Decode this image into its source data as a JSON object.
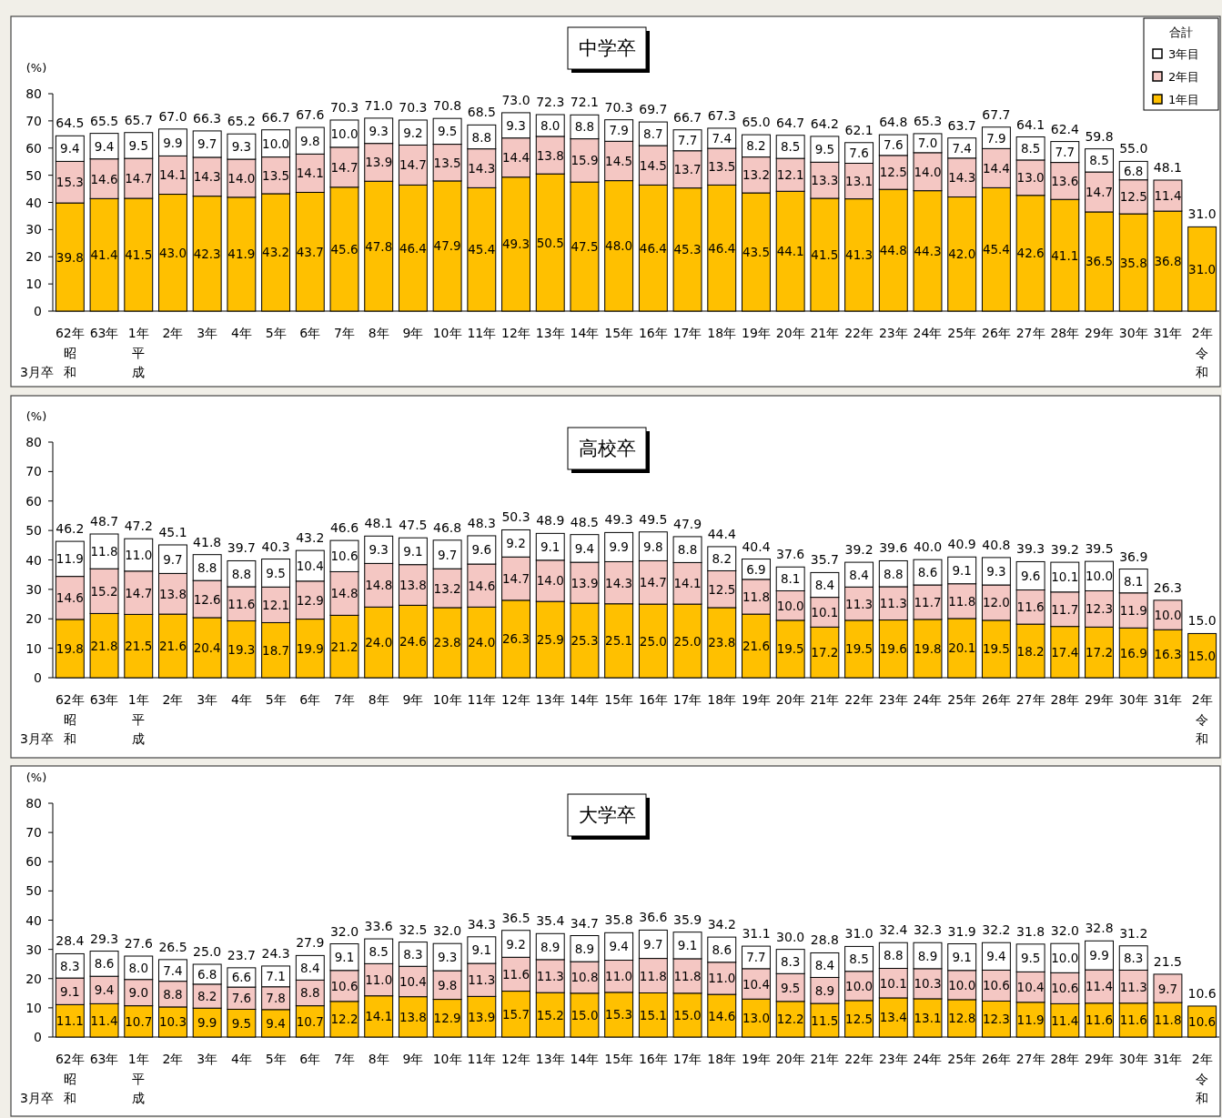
{
  "chart_data": [
    {
      "type": "bar",
      "stacked": true,
      "title": "中学卒",
      "ylabel": "(%)",
      "legend": "top right",
      "legend_title": "合計",
      "categories": [
        "62年",
        "63年",
        "1年",
        "2年",
        "3年",
        "4年",
        "5年",
        "6年",
        "7年",
        "8年",
        "9年",
        "10年",
        "11年",
        "12年",
        "13年",
        "14年",
        "15年",
        "16年",
        "17年",
        "18年",
        "19年",
        "20年",
        "21年",
        "22年",
        "23年",
        "24年",
        "25年",
        "26年",
        "27年",
        "28年",
        "29年",
        "30年",
        "31年",
        "2年"
      ],
      "ylim": [
        0,
        80
      ],
      "yticks": [
        0,
        10,
        20,
        30,
        40,
        50,
        60,
        70,
        80
      ],
      "series": [
        {
          "name": "1年目",
          "color": "#ffc000",
          "values": [
            39.8,
            41.4,
            41.5,
            43.0,
            42.3,
            41.9,
            43.2,
            43.7,
            45.6,
            47.8,
            46.4,
            47.9,
            45.4,
            49.3,
            50.5,
            47.5,
            48.0,
            46.4,
            45.3,
            46.4,
            43.5,
            44.1,
            41.5,
            41.3,
            44.8,
            44.3,
            42.0,
            45.4,
            42.6,
            41.1,
            36.5,
            35.8,
            36.8,
            31.0
          ],
          "value_labels": [
            "39.8",
            "41.4",
            "41.5",
            "43.0",
            "42.3",
            "41.9",
            "43.2",
            "43.7",
            "45.6",
            "47.8",
            "46.4",
            "47.9",
            "45.4",
            "49.3",
            "50.5",
            "47.5",
            "48.0",
            "46.4",
            "45.3",
            "46.4",
            "43.5",
            "44.1",
            "41.5",
            "41.3",
            "44.8",
            "44.3",
            "42.0",
            "45.4",
            "42.6",
            "41.1",
            "36.5",
            "35.8",
            "36.8",
            "31.0"
          ]
        },
        {
          "name": "2年目",
          "color": "#f4c7c3",
          "values": [
            15.3,
            14.6,
            14.7,
            14.1,
            14.3,
            14.0,
            13.5,
            14.1,
            14.7,
            13.9,
            14.7,
            13.5,
            14.3,
            14.4,
            13.8,
            15.9,
            14.5,
            14.5,
            13.7,
            13.5,
            13.2,
            12.1,
            13.3,
            13.1,
            12.5,
            14.0,
            14.3,
            14.4,
            13.0,
            13.6,
            14.7,
            12.5,
            11.4,
            null
          ],
          "value_labels": [
            "15.3",
            "14.6",
            "14.7",
            "14.1",
            "14.3",
            "14.0",
            "13.5",
            "14.1",
            "14.7",
            "13.9",
            "14.7",
            "13.5",
            "14.3",
            "14.4",
            "13.8",
            "15.9",
            "14.5",
            "14.5",
            "13.7",
            "13.5",
            "13.2",
            "12.1",
            "13.3",
            "13.1",
            "12.5",
            "14.0",
            "14.3",
            "14.4",
            "13.0",
            "13.6",
            "14.7",
            "12.5",
            "11.4",
            null
          ]
        },
        {
          "name": "3年目",
          "color": "#ffffff",
          "values": [
            9.4,
            9.4,
            9.5,
            9.9,
            9.7,
            9.3,
            10.0,
            9.8,
            10.0,
            9.3,
            9.2,
            9.5,
            8.8,
            9.3,
            8.0,
            8.8,
            7.9,
            8.7,
            7.7,
            7.4,
            8.2,
            8.5,
            9.5,
            7.6,
            7.6,
            7.0,
            7.4,
            7.9,
            8.5,
            7.7,
            8.5,
            6.8,
            null,
            null
          ],
          "value_labels": [
            "9.4",
            "9.4",
            "9.5",
            "9.9",
            "9.7",
            "9.3",
            "10.0",
            "9.8",
            "10.0",
            "9.3",
            "9.2",
            "9.5",
            "8.8",
            "9.3",
            "8.0",
            "8.8",
            "7.9",
            "8.7",
            "7.7",
            "7.4",
            "8.2",
            "8.5",
            "9.5",
            "7.6",
            "7.6",
            "7.0",
            "7.4",
            "7.9",
            "8.5",
            "7.7",
            "8.5",
            "6.8",
            null,
            null
          ]
        }
      ],
      "totals": [
        "64.5",
        "65.5",
        "65.7",
        "67.0",
        "66.3",
        "65.2",
        "66.7",
        "67.6",
        "70.3",
        "71.0",
        "70.3",
        "70.8",
        "68.5",
        "73.0",
        "72.3",
        "72.1",
        "70.3",
        "69.7",
        "66.7",
        "67.3",
        "65.0",
        "64.7",
        "64.2",
        "62.1",
        "64.8",
        "65.3",
        "63.7",
        "67.7",
        "64.1",
        "62.4",
        "59.8",
        "55.0",
        "48.1",
        "31.0"
      ],
      "annotations": [
        "3月卒",
        "昭和",
        "平成",
        "令和"
      ]
    },
    {
      "type": "bar",
      "stacked": true,
      "title": "高校卒",
      "ylabel": "(%)",
      "categories": [
        "62年",
        "63年",
        "1年",
        "2年",
        "3年",
        "4年",
        "5年",
        "6年",
        "7年",
        "8年",
        "9年",
        "10年",
        "11年",
        "12年",
        "13年",
        "14年",
        "15年",
        "16年",
        "17年",
        "18年",
        "19年",
        "20年",
        "21年",
        "22年",
        "23年",
        "24年",
        "25年",
        "26年",
        "27年",
        "28年",
        "29年",
        "30年",
        "31年",
        "2年"
      ],
      "ylim": [
        0,
        80
      ],
      "yticks": [
        0,
        10,
        20,
        30,
        40,
        50,
        60,
        70,
        80
      ],
      "series": [
        {
          "color": "#ffc000",
          "values": [
            19.8,
            21.8,
            21.5,
            21.6,
            20.4,
            19.3,
            18.7,
            19.9,
            21.2,
            24.0,
            24.6,
            23.8,
            24.0,
            26.3,
            25.9,
            25.3,
            25.1,
            25.0,
            25.0,
            23.8,
            21.6,
            19.5,
            17.2,
            19.5,
            19.6,
            19.8,
            20.1,
            19.5,
            18.2,
            17.4,
            17.2,
            16.9,
            16.3,
            15.0
          ],
          "value_labels": [
            "19.8",
            "21.8",
            "21.5",
            "21.6",
            "20.4",
            "19.3",
            "18.7",
            "19.9",
            "21.2",
            "24.0",
            "24.6",
            "23.8",
            "24.0",
            "26.3",
            "25.9",
            "25.3",
            "25.1",
            "25.0",
            "25.0",
            "23.8",
            "21.6",
            "19.5",
            "17.2",
            "19.5",
            "19.6",
            "19.8",
            "20.1",
            "19.5",
            "18.2",
            "17.4",
            "17.2",
            "16.9",
            "16.3",
            "15.0"
          ]
        },
        {
          "color": "#f4c7c3",
          "values": [
            14.6,
            15.2,
            14.7,
            13.8,
            12.6,
            11.6,
            12.1,
            12.9,
            14.8,
            14.8,
            13.8,
            13.2,
            14.6,
            14.7,
            14.0,
            13.9,
            14.3,
            14.7,
            14.1,
            12.5,
            11.8,
            10.0,
            10.1,
            11.3,
            11.3,
            11.7,
            11.8,
            12.0,
            11.6,
            11.7,
            12.3,
            11.9,
            10.0,
            null
          ],
          "value_labels": [
            "14.6",
            "15.2",
            "14.7",
            "13.8",
            "12.6",
            "11.6",
            "12.1",
            "12.9",
            "14.8",
            "14.8",
            "13.8",
            "13.2",
            "14.6",
            "14.7",
            "14.0",
            "13.9",
            "14.3",
            "14.7",
            "14.1",
            "12.5",
            "11.8",
            "10.0",
            "10.1",
            "11.3",
            "11.3",
            "11.7",
            "11.8",
            "12.0",
            "11.6",
            "11.7",
            "12.3",
            "11.9",
            "10.0",
            null
          ]
        },
        {
          "color": "#ffffff",
          "values": [
            11.9,
            11.8,
            11.0,
            9.7,
            8.8,
            8.8,
            9.5,
            10.4,
            10.6,
            9.3,
            9.1,
            9.7,
            9.6,
            9.2,
            9.1,
            9.4,
            9.9,
            9.8,
            8.8,
            8.2,
            6.9,
            8.1,
            8.4,
            8.4,
            8.8,
            8.6,
            9.1,
            9.3,
            9.6,
            10.1,
            10.0,
            8.1,
            null,
            null
          ],
          "value_labels": [
            "11.9",
            "11.8",
            "11.0",
            "9.7",
            "8.8",
            "8.8",
            "9.5",
            "10.4",
            "10.6",
            "9.3",
            "9.1",
            "9.7",
            "9.6",
            "9.2",
            "9.1",
            "9.4",
            "9.9",
            "9.8",
            "8.8",
            "8.2",
            "6.9",
            "8.1",
            "8.4",
            "8.4",
            "8.8",
            "8.6",
            "9.1",
            "9.3",
            "9.6",
            "10.1",
            "10.0",
            "8.1",
            null,
            null
          ]
        }
      ],
      "totals": [
        "46.2",
        "48.7",
        "47.2",
        "45.1",
        "41.8",
        "39.7",
        "40.3",
        "43.2",
        "46.6",
        "48.1",
        "47.5",
        "46.8",
        "48.3",
        "50.3",
        "48.9",
        "48.5",
        "49.3",
        "49.5",
        "47.9",
        "44.4",
        "40.4",
        "37.6",
        "35.7",
        "39.2",
        "39.6",
        "40.0",
        "40.9",
        "40.8",
        "39.3",
        "39.2",
        "39.5",
        "36.9",
        "26.3",
        "15.0"
      ],
      "annotations": [
        "3月卒",
        "昭和",
        "平成",
        "令和"
      ]
    },
    {
      "type": "bar",
      "stacked": true,
      "title": "大学卒",
      "ylabel": "(%)",
      "categories": [
        "62年",
        "63年",
        "1年",
        "2年",
        "3年",
        "4年",
        "5年",
        "6年",
        "7年",
        "8年",
        "9年",
        "10年",
        "11年",
        "12年",
        "13年",
        "14年",
        "15年",
        "16年",
        "17年",
        "18年",
        "19年",
        "20年",
        "21年",
        "22年",
        "23年",
        "24年",
        "25年",
        "26年",
        "27年",
        "28年",
        "29年",
        "30年",
        "31年",
        "2年"
      ],
      "ylim": [
        0,
        80
      ],
      "yticks": [
        0,
        10,
        20,
        30,
        40,
        50,
        60,
        70,
        80
      ],
      "series": [
        {
          "color": "#ffc000",
          "values": [
            11.1,
            11.4,
            10.7,
            10.3,
            9.9,
            9.5,
            9.4,
            10.7,
            12.2,
            14.1,
            13.8,
            12.9,
            13.9,
            15.7,
            15.2,
            15.0,
            15.3,
            15.1,
            15.0,
            14.6,
            13.0,
            12.2,
            11.5,
            12.5,
            13.4,
            13.1,
            12.8,
            12.3,
            11.9,
            11.4,
            11.6,
            11.6,
            11.8,
            10.6
          ],
          "value_labels": [
            "11.1",
            "11.4",
            "10.7",
            "10.3",
            "9.9",
            "9.5",
            "9.4",
            "10.7",
            "12.2",
            "14.1",
            "13.8",
            "12.9",
            "13.9",
            "15.7",
            "15.2",
            "15.0",
            "15.3",
            "15.1",
            "15.0",
            "14.6",
            "13.0",
            "12.2",
            "11.5",
            "12.5",
            "13.4",
            "13.1",
            "12.8",
            "12.3",
            "11.9",
            "11.4",
            "11.6",
            "11.6",
            "11.8",
            "10.6"
          ]
        },
        {
          "color": "#f4c7c3",
          "values": [
            9.1,
            9.4,
            9.0,
            8.8,
            8.2,
            7.6,
            7.8,
            8.8,
            10.6,
            11.0,
            10.4,
            9.8,
            11.3,
            11.6,
            11.3,
            10.8,
            11.0,
            11.8,
            11.8,
            11.0,
            10.4,
            9.5,
            8.9,
            10.0,
            10.1,
            10.3,
            10.0,
            10.6,
            10.4,
            10.6,
            11.4,
            11.3,
            9.7,
            null
          ],
          "value_labels": [
            "9.1",
            "9.4",
            "9.0",
            "8.8",
            "8.2",
            "7.6",
            "7.8",
            "8.8",
            "10.6",
            "11.0",
            "10.4",
            "9.8",
            "11.3",
            "11.6",
            "11.3",
            "10.8",
            "11.0",
            "11.8",
            "11.8",
            "11.0",
            "10.4",
            "9.5",
            "8.9",
            "10.0",
            "10.1",
            "10.3",
            "10.0",
            "10.6",
            "10.4",
            "10.6",
            "11.4",
            "11.3",
            "9.7",
            null
          ]
        },
        {
          "color": "#ffffff",
          "values": [
            8.3,
            8.6,
            8.0,
            7.4,
            6.8,
            6.6,
            7.1,
            8.4,
            9.1,
            8.5,
            8.3,
            9.3,
            9.1,
            9.2,
            8.9,
            8.9,
            9.4,
            9.7,
            9.1,
            8.6,
            7.7,
            8.3,
            8.4,
            8.5,
            8.8,
            8.9,
            9.1,
            9.4,
            9.5,
            10.0,
            9.9,
            8.3,
            null,
            null
          ],
          "value_labels": [
            "8.3",
            "8.6",
            "8.0",
            "7.4",
            "6.8",
            "6.6",
            "7.1",
            "8.4",
            "9.1",
            "8.5",
            "8.3",
            "9.3",
            "9.1",
            "9.2",
            "8.9",
            "8.9",
            "9.4",
            "9.7",
            "9.1",
            "8.6",
            "7.7",
            "8.3",
            "8.4",
            "8.5",
            "8.8",
            "8.9",
            "9.1",
            "9.4",
            "9.5",
            "10.0",
            "9.9",
            "8.3",
            null,
            null
          ]
        }
      ],
      "totals": [
        "28.4",
        "29.3",
        "27.6",
        "26.5",
        "25.0",
        "23.7",
        "24.3",
        "27.9",
        "32.0",
        "33.6",
        "32.5",
        "32.0",
        "34.3",
        "36.5",
        "35.4",
        "34.7",
        "35.8",
        "36.6",
        "35.9",
        "34.2",
        "31.1",
        "30.0",
        "28.8",
        "31.0",
        "32.4",
        "32.3",
        "31.9",
        "32.2",
        "31.8",
        "32.0",
        "32.8",
        "31.2",
        "21.5",
        "10.6"
      ],
      "annotations": [
        "3月卒",
        "昭和",
        "平成",
        "令和"
      ]
    }
  ]
}
